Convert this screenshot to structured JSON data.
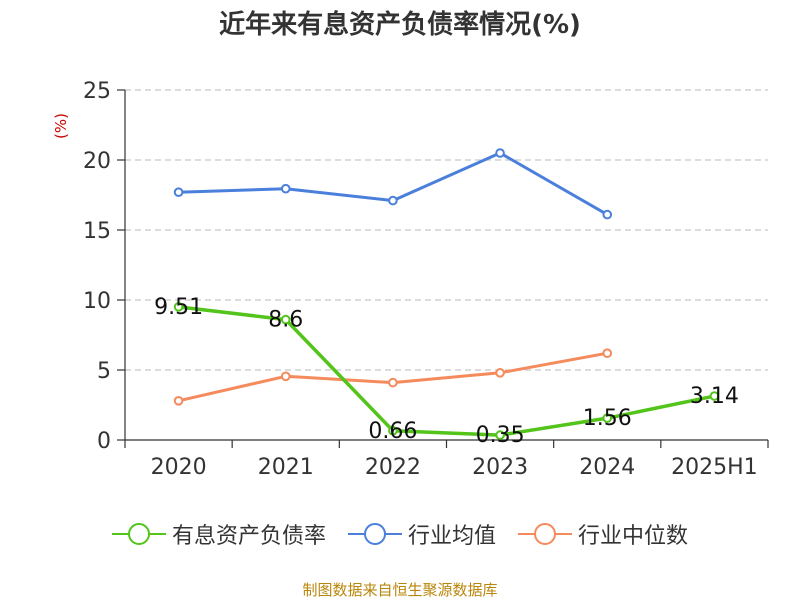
{
  "chart_data": {
    "type": "line",
    "title": "近年来有息资产负债率情况(%)",
    "ylabel": "(%)",
    "xlabel": "",
    "categories": [
      "2020",
      "2021",
      "2022",
      "2023",
      "2024",
      "2025H1"
    ],
    "ylim": [
      0,
      25
    ],
    "yticks": [
      0,
      5,
      10,
      15,
      20,
      25
    ],
    "grid": true,
    "legend_position": "bottom",
    "series": [
      {
        "name": "有息资产负债率",
        "color": "#52c41a",
        "values": [
          9.51,
          8.6,
          0.66,
          0.35,
          1.56,
          3.14
        ],
        "labels": [
          "9.51",
          "8.6",
          "0.66",
          "0.35",
          "1.56",
          "3.14"
        ]
      },
      {
        "name": "行业均值",
        "color": "#4a7fdb",
        "values": [
          17.7,
          17.95,
          17.1,
          20.5,
          16.1,
          null
        ]
      },
      {
        "name": "行业中位数",
        "color": "#f58a5c",
        "values": [
          2.8,
          4.55,
          4.1,
          4.8,
          6.2,
          null
        ]
      }
    ],
    "source": "制图数据来自恒生聚源数据库"
  }
}
